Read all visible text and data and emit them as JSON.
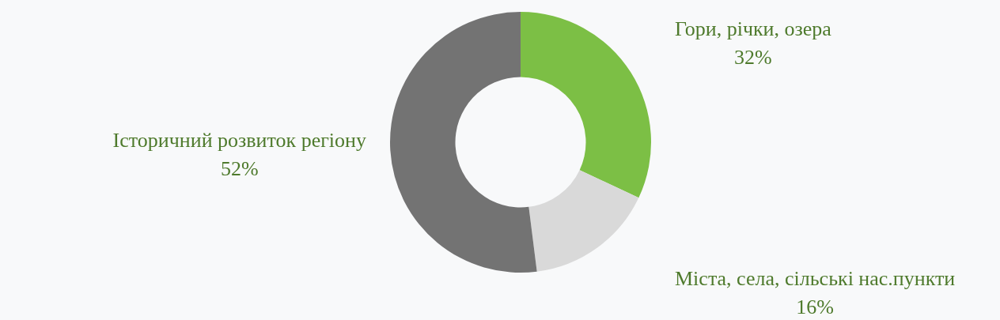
{
  "chart_data": {
    "type": "donut",
    "categories": [
      "Гори, річки, озера",
      "Міста, села, сільські нас.пункти",
      "Історичний розвиток регіону"
    ],
    "values": [
      32,
      16,
      52
    ],
    "colors": [
      "#7cbf45",
      "#d9d9d9",
      "#737373"
    ],
    "value_labels": [
      "32%",
      "16%",
      "52%"
    ],
    "legend": false
  }
}
